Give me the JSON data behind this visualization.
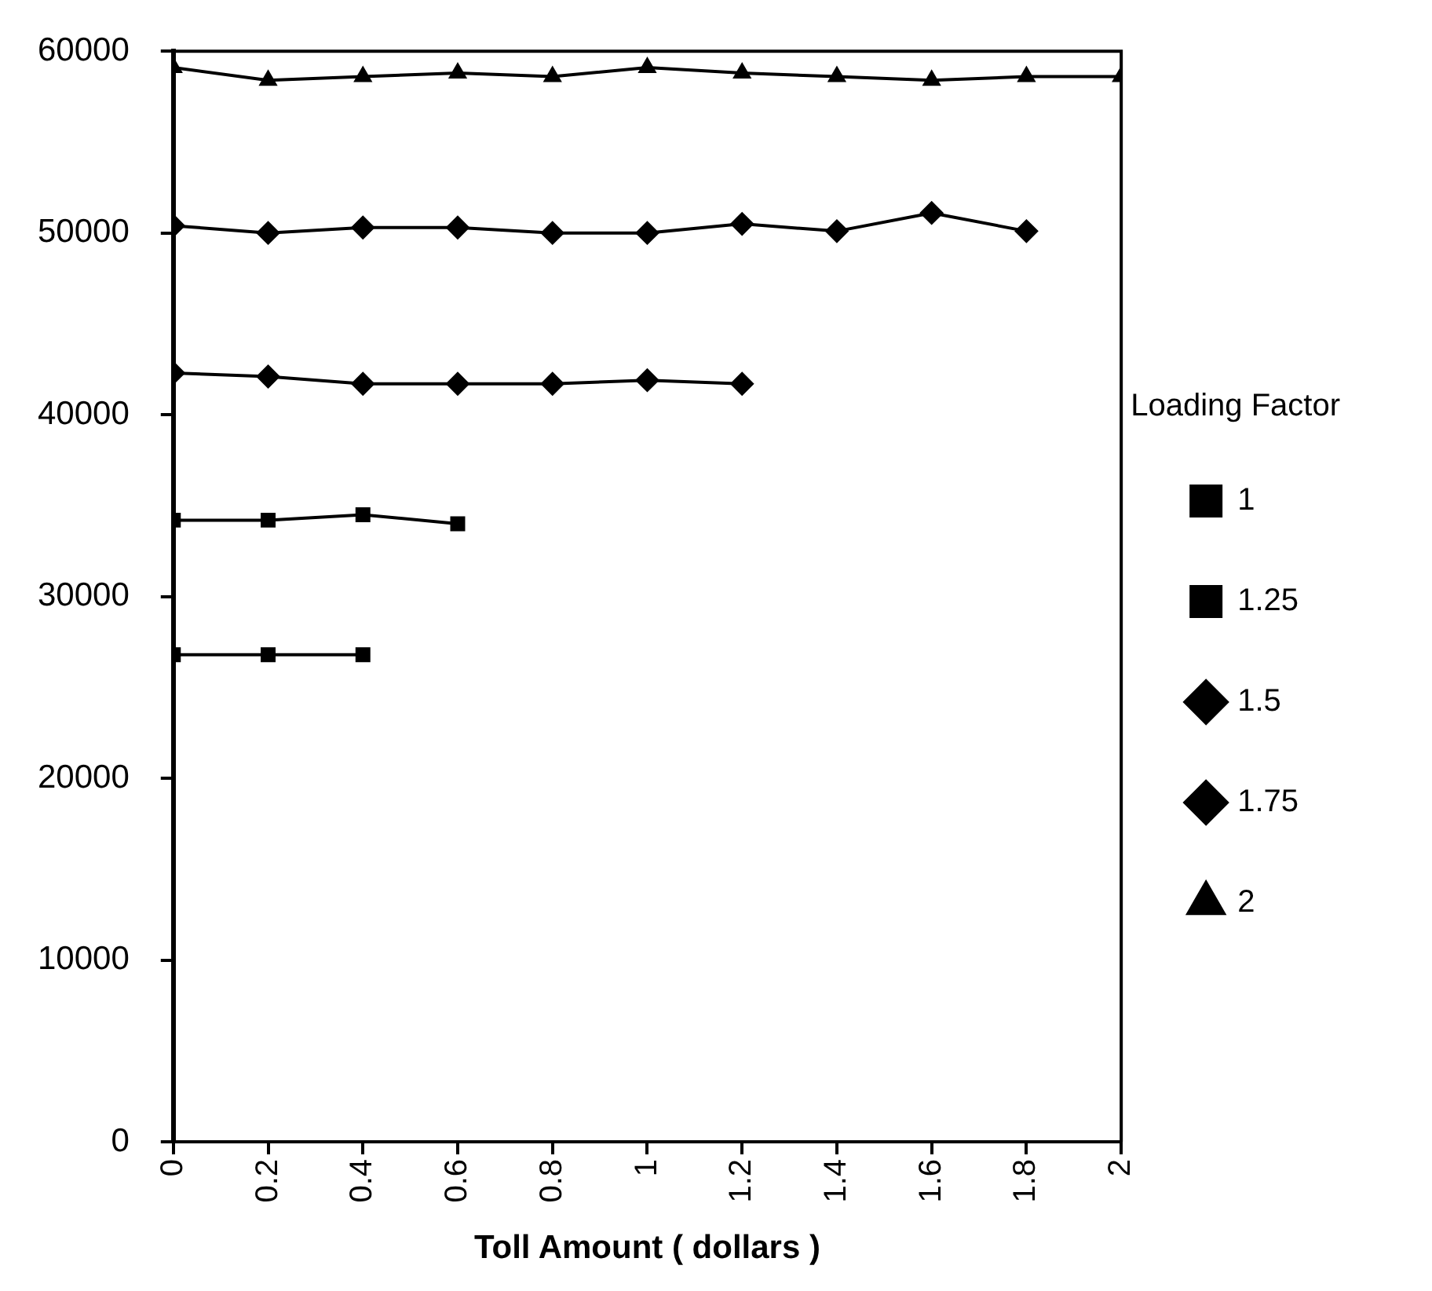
{
  "chart_data": {
    "type": "line",
    "xlabel": "Toll Amount ( dollars )",
    "legend_title": "Loading Factor",
    "legend": "right",
    "grid": false,
    "xlim": [
      0,
      2
    ],
    "xticks": [
      0,
      0.2,
      0.4,
      0.6,
      0.8,
      1,
      1.2,
      1.4,
      1.6,
      1.8,
      2
    ],
    "ylim": [
      0,
      60000
    ],
    "yticks": [
      0,
      10000,
      20000,
      30000,
      40000,
      50000,
      60000
    ],
    "series": [
      {
        "name": "1",
        "color": "#000000",
        "marker": "square",
        "x": [
          0,
          0.2,
          0.4
        ],
        "values": [
          26800,
          26800,
          26800
        ]
      },
      {
        "name": "1.25",
        "color": "#000000",
        "marker": "square",
        "x": [
          0,
          0.2,
          0.4,
          0.6
        ],
        "values": [
          34200,
          34200,
          34500,
          34000
        ]
      },
      {
        "name": "1.5",
        "color": "#000000",
        "marker": "diamond",
        "x": [
          0,
          0.2,
          0.4,
          0.6,
          0.8,
          1,
          1.2
        ],
        "values": [
          42300,
          42100,
          41700,
          41700,
          41700,
          41900,
          41700
        ]
      },
      {
        "name": "1.75",
        "color": "#000000",
        "marker": "diamond",
        "x": [
          0,
          0.2,
          0.4,
          0.6,
          0.8,
          1,
          1.2,
          1.4,
          1.6,
          1.8
        ],
        "values": [
          50400,
          50000,
          50300,
          50300,
          50000,
          50000,
          50500,
          50100,
          51100,
          50100
        ]
      },
      {
        "name": "2",
        "color": "#000000",
        "marker": "triangle",
        "x": [
          0,
          0.2,
          0.4,
          0.6,
          0.8,
          1,
          1.2,
          1.4,
          1.6,
          1.8,
          2
        ],
        "values": [
          59100,
          58400,
          58600,
          58800,
          58600,
          59100,
          58800,
          58600,
          58400,
          58600,
          58600
        ]
      }
    ]
  }
}
